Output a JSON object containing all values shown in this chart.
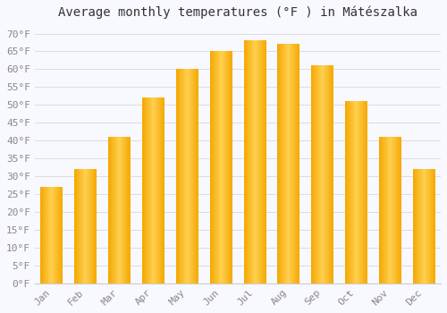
{
  "title": "Average monthly temperatures (°F ) in Mátészalka",
  "months": [
    "Jan",
    "Feb",
    "Mar",
    "Apr",
    "May",
    "Jun",
    "Jul",
    "Aug",
    "Sep",
    "Oct",
    "Nov",
    "Dec"
  ],
  "values": [
    27,
    32,
    41,
    52,
    60,
    65,
    68,
    67,
    61,
    51,
    41,
    32
  ],
  "bar_color_left": "#F5A800",
  "bar_color_mid": "#FFD050",
  "bar_color_right": "#F5A800",
  "background_color": "#f8f8ff",
  "grid_color": "#dddddd",
  "ylim": [
    0,
    72
  ],
  "yticks": [
    0,
    5,
    10,
    15,
    20,
    25,
    30,
    35,
    40,
    45,
    50,
    55,
    60,
    65,
    70
  ],
  "title_fontsize": 10,
  "tick_fontsize": 8,
  "tick_color": "#888888",
  "bar_width": 0.65
}
